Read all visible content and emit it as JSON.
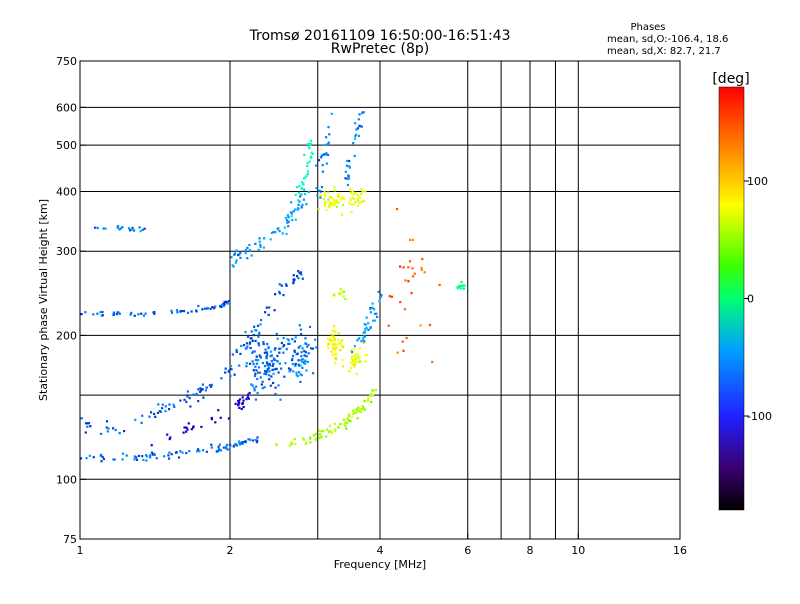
{
  "chart_data": {
    "type": "scatter",
    "title": "Tromsø 20161109 16:50:00-16:51:43",
    "subtitle": "RwPretec (8p)",
    "xlabel": "Frequency [MHz]",
    "ylabel": "Stationary phase Virtual Height [km]",
    "x_scale": "log",
    "y_scale": "log",
    "xlim": [
      1,
      16
    ],
    "ylim": [
      75,
      750
    ],
    "x_ticks": [
      1,
      2,
      4,
      6,
      8,
      10,
      16
    ],
    "x_tick_labels": [
      "1",
      "2",
      "4",
      "6",
      "8",
      "10",
      "16"
    ],
    "y_ticks": [
      75,
      100,
      200,
      300,
      400,
      500,
      600,
      750
    ],
    "y_tick_labels": [
      "75",
      "100",
      "200",
      "300",
      "400",
      "500",
      "600",
      "750"
    ],
    "grid": true,
    "x_grid_lines": [
      2,
      3,
      4,
      6,
      7,
      8,
      9,
      10
    ],
    "y_grid_lines": [
      100,
      150,
      200,
      300,
      400,
      500,
      600
    ],
    "phases_box": {
      "heading": "Phases",
      "line1": "mean, sd,O:-106.4, 18.6",
      "line2": "mean, sd,X:  82.7, 21.7"
    },
    "colorbar": {
      "label": "[deg]",
      "range": [
        -180,
        180
      ],
      "ticks": [
        100,
        0,
        -100
      ],
      "tick_labels": [
        "100",
        "0",
        "-100"
      ]
    },
    "groups": [
      {
        "kind": "curve",
        "pts": [
          [
            1.0,
            112
          ],
          [
            1.3,
            111
          ],
          [
            1.6,
            113
          ],
          [
            1.9,
            116
          ],
          [
            2.1,
            119
          ],
          [
            2.3,
            122
          ]
        ],
        "spread": 0.02,
        "n": 90,
        "phase": -105
      },
      {
        "kind": "curve",
        "pts": [
          [
            1.0,
            132
          ],
          [
            1.2,
            128
          ],
          [
            1.4,
            138
          ],
          [
            1.6,
            145
          ],
          [
            1.8,
            155
          ],
          [
            2.0,
            172
          ],
          [
            2.2,
            200
          ],
          [
            2.4,
            230
          ],
          [
            2.6,
            255
          ],
          [
            2.8,
            270
          ]
        ],
        "spread": 0.04,
        "n": 120,
        "phase": -110
      },
      {
        "kind": "curve",
        "pts": [
          [
            1.4,
            120
          ],
          [
            1.7,
            128
          ],
          [
            2.0,
            140
          ],
          [
            2.2,
            150
          ]
        ],
        "spread": 0.03,
        "n": 40,
        "phase": -150
      },
      {
        "kind": "curve",
        "pts": [
          [
            1.0,
            222
          ],
          [
            1.3,
            222
          ],
          [
            1.6,
            225
          ],
          [
            1.85,
            228
          ],
          [
            2.0,
            235
          ]
        ],
        "spread": 0.012,
        "n": 60,
        "phase": -110
      },
      {
        "kind": "curve",
        "pts": [
          [
            1.05,
            335
          ],
          [
            1.2,
            335
          ],
          [
            1.35,
            333
          ]
        ],
        "spread": 0.01,
        "n": 20,
        "phase": -100
      },
      {
        "kind": "curve",
        "pts": [
          [
            2.0,
            290
          ],
          [
            2.2,
            300
          ],
          [
            2.5,
            330
          ],
          [
            2.7,
            360
          ],
          [
            2.85,
            400
          ]
        ],
        "spread": 0.04,
        "n": 70,
        "phase": -90
      },
      {
        "kind": "curve",
        "pts": [
          [
            2.7,
            380
          ],
          [
            2.85,
            440
          ],
          [
            2.9,
            520
          ]
        ],
        "spread": 0.03,
        "n": 30,
        "phase": -40
      },
      {
        "kind": "curve",
        "pts": [
          [
            2.95,
            370
          ],
          [
            3.05,
            450
          ],
          [
            3.3,
            600
          ]
        ],
        "spread": 0.04,
        "n": 25,
        "phase": -100
      },
      {
        "kind": "curve",
        "pts": [
          [
            3.4,
            420
          ],
          [
            3.55,
            500
          ],
          [
            3.7,
            590
          ]
        ],
        "spread": 0.03,
        "n": 30,
        "phase": -100
      },
      {
        "kind": "cluster",
        "cx": 2.35,
        "cy": 175,
        "sx": 0.1,
        "sy": 0.16,
        "n": 120,
        "phase": -105
      },
      {
        "kind": "cluster",
        "cx": 2.75,
        "cy": 180,
        "sx": 0.08,
        "sy": 0.12,
        "n": 70,
        "phase": -100
      },
      {
        "kind": "cluster",
        "cx": 3.2,
        "cy": 380,
        "sx": 0.06,
        "sy": 0.05,
        "n": 45,
        "phase": 95
      },
      {
        "kind": "cluster",
        "cx": 3.6,
        "cy": 390,
        "sx": 0.05,
        "sy": 0.05,
        "n": 30,
        "phase": 90
      },
      {
        "kind": "cluster",
        "cx": 3.25,
        "cy": 190,
        "sx": 0.05,
        "sy": 0.09,
        "n": 50,
        "phase": 100
      },
      {
        "kind": "cluster",
        "cx": 3.6,
        "cy": 175,
        "sx": 0.05,
        "sy": 0.08,
        "n": 35,
        "phase": 95
      },
      {
        "kind": "curve",
        "pts": [
          [
            2.4,
            118
          ],
          [
            2.8,
            120
          ],
          [
            3.1,
            125
          ],
          [
            3.4,
            132
          ],
          [
            3.7,
            142
          ],
          [
            3.9,
            155
          ]
        ],
        "spread": 0.03,
        "n": 80,
        "phase": 70
      },
      {
        "kind": "curve",
        "pts": [
          [
            3.5,
            185
          ],
          [
            3.7,
            200
          ],
          [
            3.85,
            220
          ],
          [
            4.0,
            245
          ]
        ],
        "spread": 0.04,
        "n": 40,
        "phase": -90
      },
      {
        "kind": "cluster",
        "cx": 3.3,
        "cy": 245,
        "sx": 0.04,
        "sy": 0.02,
        "n": 10,
        "phase": 80
      },
      {
        "kind": "cluster",
        "cx": 5.8,
        "cy": 252,
        "sx": 0.02,
        "sy": 0.02,
        "n": 12,
        "phase": -20
      },
      {
        "kind": "cluster",
        "cx": 4.6,
        "cy": 240,
        "sx": 0.15,
        "sy": 0.35,
        "n": 30,
        "phase": 150
      }
    ]
  }
}
